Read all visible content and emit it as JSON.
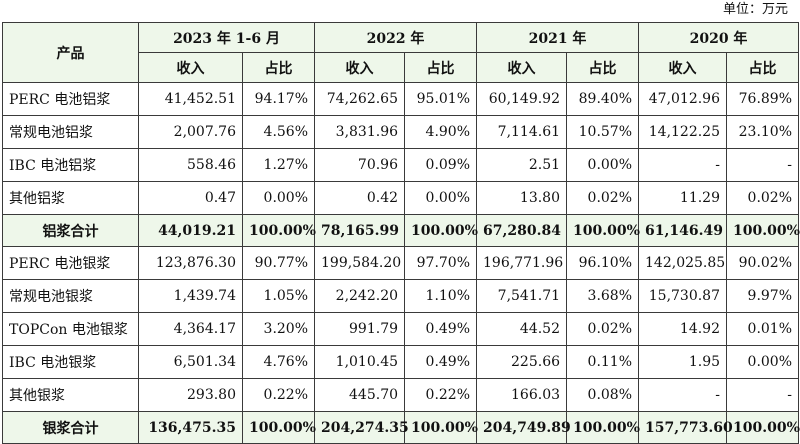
{
  "unit_label": "单位：万元",
  "header": {
    "product": "产品",
    "periods": [
      "2023 年 1-6 月",
      "2022 年",
      "2021 年",
      "2020 年"
    ],
    "revenue": "收入",
    "share": "占比"
  },
  "rows": [
    {
      "name": "PERC 电池铝浆",
      "values": [
        "41,452.51",
        "94.17%",
        "74,262.65",
        "95.01%",
        "60,149.92",
        "89.40%",
        "47,012.96",
        "76.89%"
      ],
      "subtotal": false
    },
    {
      "name": "常规电池铝浆",
      "values": [
        "2,007.76",
        "4.56%",
        "3,831.96",
        "4.90%",
        "7,114.61",
        "10.57%",
        "14,122.25",
        "23.10%"
      ],
      "subtotal": false
    },
    {
      "name": "IBC 电池铝浆",
      "values": [
        "558.46",
        "1.27%",
        "70.96",
        "0.09%",
        "2.51",
        "0.00%",
        "-",
        "-"
      ],
      "subtotal": false
    },
    {
      "name": "其他铝浆",
      "values": [
        "0.47",
        "0.00%",
        "0.42",
        "0.00%",
        "13.80",
        "0.02%",
        "11.29",
        "0.02%"
      ],
      "subtotal": false
    },
    {
      "name": "铝浆合计",
      "values": [
        "44,019.21",
        "100.00%",
        "78,165.99",
        "100.00%",
        "67,280.84",
        "100.00%",
        "61,146.49",
        "100.00%"
      ],
      "subtotal": true
    },
    {
      "name": "PERC 电池银浆",
      "values": [
        "123,876.30",
        "90.77%",
        "199,584.20",
        "97.70%",
        "196,771.96",
        "96.10%",
        "142,025.85",
        "90.02%"
      ],
      "subtotal": false
    },
    {
      "name": "常规电池银浆",
      "values": [
        "1,439.74",
        "1.05%",
        "2,242.20",
        "1.10%",
        "7,541.71",
        "3.68%",
        "15,730.87",
        "9.97%"
      ],
      "subtotal": false
    },
    {
      "name": "TOPCon 电池银浆",
      "values": [
        "4,364.17",
        "3.20%",
        "991.79",
        "0.49%",
        "44.52",
        "0.02%",
        "14.92",
        "0.01%"
      ],
      "subtotal": false
    },
    {
      "name": "IBC 电池银浆",
      "values": [
        "6,501.34",
        "4.76%",
        "1,010.45",
        "0.49%",
        "225.66",
        "0.11%",
        "1.95",
        "0.00%"
      ],
      "subtotal": false
    },
    {
      "name": "其他银浆",
      "values": [
        "293.80",
        "0.22%",
        "445.70",
        "0.22%",
        "166.03",
        "0.08%",
        "-",
        "-"
      ],
      "subtotal": false
    },
    {
      "name": "银浆合计",
      "values": [
        "136,475.35",
        "100.00%",
        "204,274.35",
        "100.00%",
        "204,749.89",
        "100.00%",
        "157,773.60",
        "100.00%"
      ],
      "subtotal": true
    }
  ],
  "colors": {
    "header_bg": "#eef7ea",
    "border": "#3a3a3a"
  }
}
